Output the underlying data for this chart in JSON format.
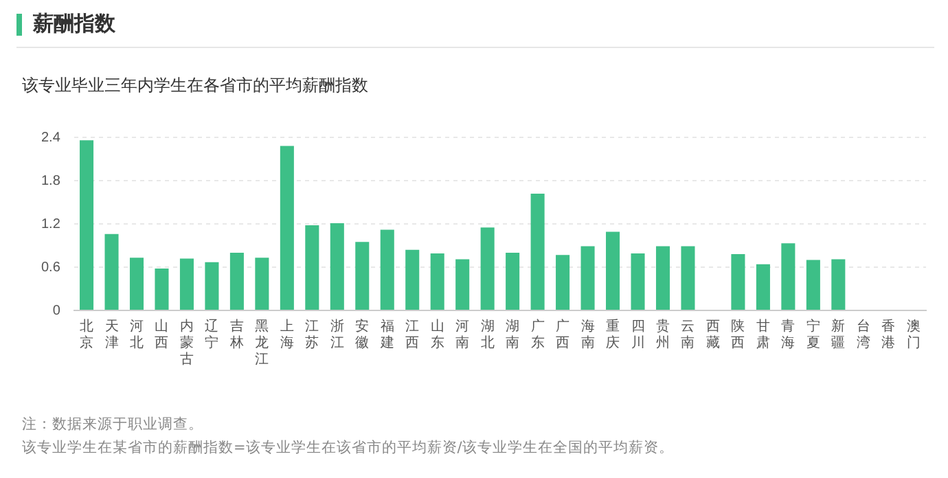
{
  "chart_data": {
    "type": "bar",
    "title": "薪酬指数",
    "subtitle": "该专业毕业三年内学生在各省市的平均薪酬指数",
    "categories": [
      "北京",
      "天津",
      "河北",
      "山西",
      "内蒙古",
      "辽宁",
      "吉林",
      "黑龙江",
      "上海",
      "江苏",
      "浙江",
      "安徽",
      "福建",
      "江西",
      "山东",
      "河南",
      "湖北",
      "湖南",
      "广东",
      "广西",
      "海南",
      "重庆",
      "四川",
      "贵州",
      "云南",
      "西藏",
      "陕西",
      "甘肃",
      "青海",
      "宁夏",
      "新疆",
      "台湾",
      "香港",
      "澳门"
    ],
    "values": [
      2.36,
      1.06,
      0.73,
      0.58,
      0.72,
      0.67,
      0.8,
      0.73,
      2.28,
      1.18,
      1.21,
      0.95,
      1.12,
      0.84,
      0.79,
      0.71,
      1.15,
      0.8,
      1.62,
      0.77,
      0.89,
      1.09,
      0.79,
      0.89,
      0.89,
      null,
      0.78,
      0.64,
      0.93,
      0.7,
      0.71,
      null,
      null,
      null
    ],
    "color": "#3dbf87",
    "ylim": [
      0,
      2.4
    ],
    "yticks": [
      0,
      0.6,
      1.2,
      1.8,
      2.4
    ],
    "grid": "y",
    "legend": false,
    "annotations": [
      "注：数据来源于职业调查。",
      "该专业学生在某省市的薪酬指数=该专业学生在该省市的平均薪资/该专业学生在全国的平均薪资。"
    ]
  }
}
